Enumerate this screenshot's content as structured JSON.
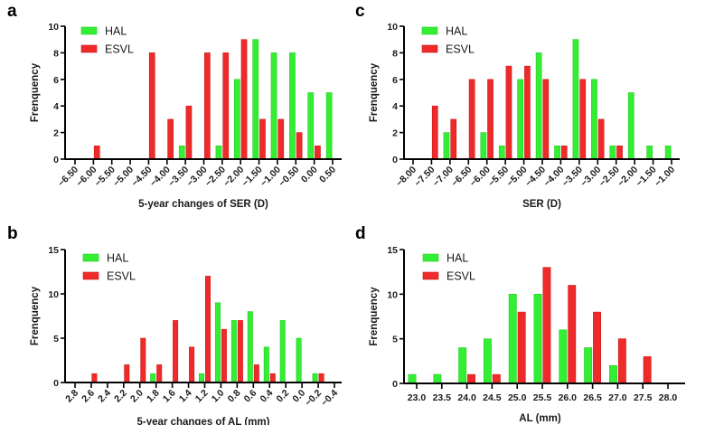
{
  "figure": {
    "colors": {
      "HAL": "#33ee33",
      "ESVL": "#ee2a2a",
      "HAL_edge": "#22cc22",
      "ESVL_edge": "#cc1a1a"
    }
  },
  "chart_data": [
    {
      "panel": "a",
      "type": "bar",
      "title": "",
      "xlabel": "5-year changes of SER (D)",
      "ylabel": "Frenquency",
      "ylim": [
        0,
        10
      ],
      "yticks": [
        "0",
        "2",
        "4",
        "6",
        "8",
        "10"
      ],
      "legend": [
        "HAL",
        "ESVL"
      ],
      "legend_position": "top-left",
      "grid": false,
      "x_label_rotation": "rotated-45",
      "categories": [
        "−6.50",
        "−6.00",
        "−5.50",
        "−5.00",
        "−4.50",
        "−4.00",
        "−3.50",
        "−3.00",
        "−2.50",
        "−2.00",
        "−1.50",
        "−1.00",
        "−0.50",
        "0.00",
        "0.50"
      ],
      "series": [
        {
          "name": "HAL",
          "values": [
            0,
            0,
            0,
            0,
            0,
            0,
            1,
            0,
            1,
            6,
            9,
            8,
            8,
            5,
            5
          ]
        },
        {
          "name": "ESVL",
          "values": [
            0,
            1,
            0,
            0,
            8,
            3,
            4,
            8,
            8,
            9,
            3,
            3,
            2,
            1,
            0
          ]
        }
      ]
    },
    {
      "panel": "b",
      "type": "bar",
      "title": "",
      "xlabel": "5-year changes of AL (mm)",
      "ylabel": "Frenquency",
      "ylim": [
        0,
        15
      ],
      "yticks": [
        "0",
        "5",
        "10",
        "15"
      ],
      "legend": [
        "HAL",
        "ESVL"
      ],
      "legend_position": "top-left",
      "grid": false,
      "x_label_rotation": "rotated-45",
      "categories": [
        "2.8",
        "2.6",
        "2.4",
        "2.2",
        "2.0",
        "1.8",
        "1.6",
        "1.4",
        "1.2",
        "1.0",
        "0.8",
        "0.6",
        "0.4",
        "0.2",
        "0.0",
        "−0.2",
        "−0.4"
      ],
      "series": [
        {
          "name": "HAL",
          "values": [
            0,
            0,
            0,
            0,
            0,
            1,
            0,
            0,
            1,
            9,
            7,
            8,
            4,
            7,
            5,
            1,
            0
          ]
        },
        {
          "name": "ESVL",
          "values": [
            0,
            1,
            0,
            2,
            5,
            2,
            7,
            4,
            12,
            6,
            7,
            2,
            1,
            0,
            0,
            1,
            0
          ]
        }
      ]
    },
    {
      "panel": "c",
      "type": "bar",
      "title": "",
      "xlabel": "SER (D)",
      "ylabel": "Frenquency",
      "ylim": [
        0,
        10
      ],
      "yticks": [
        "0",
        "2",
        "4",
        "6",
        "8",
        "10"
      ],
      "legend": [
        "HAL",
        "ESVL"
      ],
      "legend_position": "top-left",
      "grid": false,
      "x_label_rotation": "rotated-45",
      "categories": [
        "−8.00",
        "−7.50",
        "−7.00",
        "−6.50",
        "−6.00",
        "−5.50",
        "−5.00",
        "−4.50",
        "−4.00",
        "−3.50",
        "−3.00",
        "−2.50",
        "−2.00",
        "−1.50",
        "−1.00"
      ],
      "series": [
        {
          "name": "HAL",
          "values": [
            0,
            0,
            2,
            0,
            2,
            1,
            6,
            8,
            1,
            9,
            6,
            1,
            5,
            1,
            1
          ]
        },
        {
          "name": "ESVL",
          "values": [
            0,
            4,
            3,
            6,
            6,
            7,
            7,
            6,
            1,
            6,
            3,
            1,
            0,
            0,
            0
          ]
        }
      ]
    },
    {
      "panel": "d",
      "type": "bar",
      "title": "",
      "xlabel": "AL (mm)",
      "ylabel": "Frenquency",
      "ylim": [
        0,
        15
      ],
      "yticks": [
        "0",
        "5",
        "10",
        "15"
      ],
      "legend": [
        "HAL",
        "ESVL"
      ],
      "legend_position": "top-left",
      "grid": false,
      "x_label_rotation": "horizontal",
      "categories": [
        "23.0",
        "23.5",
        "24.0",
        "24.5",
        "25.0",
        "25.5",
        "26.0",
        "26.5",
        "27.0",
        "27.5",
        "28.0"
      ],
      "series": [
        {
          "name": "HAL",
          "values": [
            1,
            1,
            4,
            5,
            10,
            10,
            6,
            4,
            2,
            0,
            0
          ]
        },
        {
          "name": "ESVL",
          "values": [
            0,
            0,
            1,
            1,
            8,
            13,
            11,
            8,
            5,
            3,
            0
          ]
        }
      ]
    }
  ]
}
